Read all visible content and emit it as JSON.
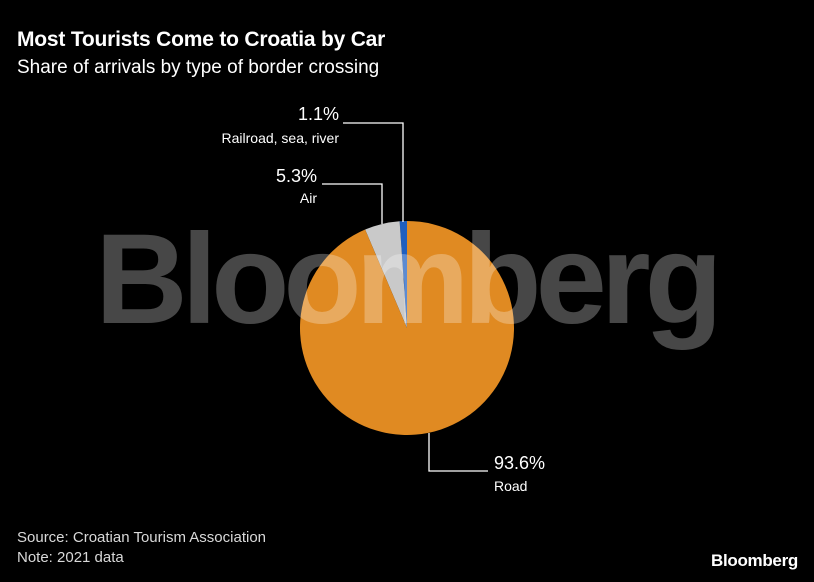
{
  "header": {
    "title": "Most Tourists Come to Croatia by Car",
    "subtitle": "Share of arrivals by type of border crossing"
  },
  "chart_data": {
    "type": "pie",
    "title": "Most Tourists Come to Croatia by Car",
    "subtitle": "Share of arrivals by type of border crossing",
    "slices": [
      {
        "label": "Railroad, sea, river",
        "value": 1.1,
        "value_label": "1.1%",
        "color": "#1f5fbf"
      },
      {
        "label": "Air",
        "value": 5.3,
        "value_label": "5.3%",
        "color": "#c9c9c9"
      },
      {
        "label": "Road",
        "value": 93.6,
        "value_label": "93.6%",
        "color": "#e08a22"
      }
    ],
    "start_angle": "12 o'clock",
    "direction": "counter-clockwise",
    "legend": "none (leader-line labels)"
  },
  "watermark": {
    "text": "Bloomberg"
  },
  "footer": {
    "source": "Source: Croatian Tourism Association",
    "note": "Note: 2021 data",
    "brand": "Bloomberg"
  }
}
